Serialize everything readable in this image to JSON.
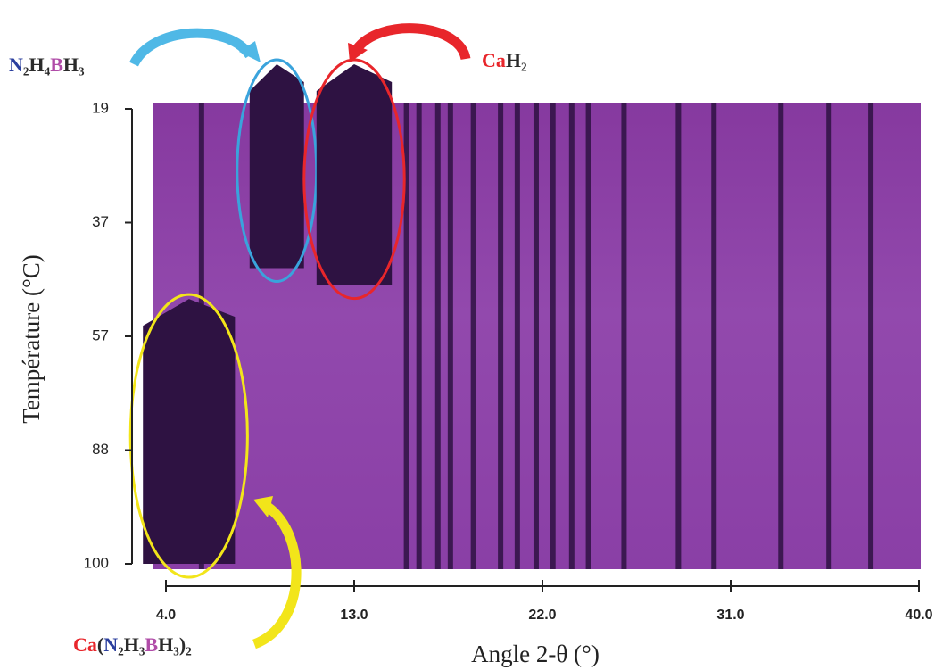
{
  "chart_data": {
    "type": "heatmap-stripes",
    "x_label": "Angle 2-θ (°)",
    "y_label": "Température (°C)",
    "xlim": [
      4,
      40
    ],
    "xticks": [
      {
        "value": 4,
        "label": "4.0"
      },
      {
        "value": 13,
        "label": "13.0"
      },
      {
        "value": 22,
        "label": "22.0"
      },
      {
        "value": 31,
        "label": "31.0"
      },
      {
        "value": 40,
        "label": "40.0"
      }
    ],
    "ylim": [
      19,
      100
    ],
    "yticks": [
      19,
      37,
      57,
      88,
      100
    ],
    "y_scale": "piecewise",
    "surface_color": "#8c43aa",
    "peak_color": "#2e1242",
    "peaks": [
      5.7,
      15.5,
      16.1,
      17.0,
      17.6,
      18.7,
      20.0,
      20.8,
      21.7,
      22.5,
      23.4,
      24.2,
      25.9,
      28.5,
      30.2,
      33.4,
      35.7,
      37.7
    ],
    "phases": [
      {
        "label": [
          {
            "text": "N",
            "color": "#2b3f9e"
          },
          {
            "text": "₂H₄",
            "color": "#2b2b2b"
          },
          {
            "text": "B",
            "color": "#b04ca8"
          },
          {
            "text": "H₃",
            "color": "#2b2b2b"
          }
        ],
        "outline_color": "#3aa3dc",
        "angle_range": [
          8.0,
          10.6
        ],
        "temp_range": [
          19,
          45
        ]
      },
      {
        "label": [
          {
            "text": "Ca",
            "color": "#e8262b"
          },
          {
            "text": "H₂",
            "color": "#2b2b2b"
          }
        ],
        "outline_color": "#e8262b",
        "angle_range": [
          11.2,
          14.8
        ],
        "temp_range": [
          19,
          48
        ]
      },
      {
        "label": [
          {
            "text": "Ca",
            "color": "#e8262b"
          },
          {
            "text": "(",
            "color": "#2b2b2b"
          },
          {
            "text": "N",
            "color": "#2b3f9e"
          },
          {
            "text": "₂H₃",
            "color": "#2b2b2b"
          },
          {
            "text": "B",
            "color": "#b04ca8"
          },
          {
            "text": "H₃)₂",
            "color": "#2b2b2b"
          }
        ],
        "outline_color": "#f2e51a",
        "angle_range": [
          2.9,
          7.3
        ],
        "temp_range": [
          52,
          100
        ]
      }
    ]
  }
}
